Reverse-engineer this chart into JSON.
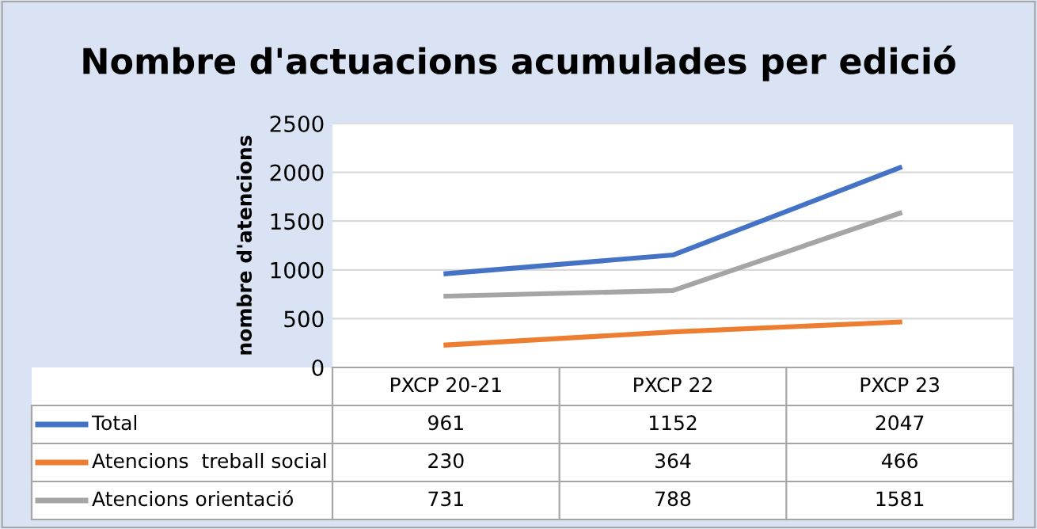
{
  "chart_data": {
    "type": "line",
    "title": "Nombre d'actuacions acumulades per edició",
    "ylabel": "nombre d'atencions",
    "categories": [
      "PXCP 20-21",
      "PXCP 22",
      "PXCP 23"
    ],
    "series": [
      {
        "name": "Total",
        "color": "#4472c4",
        "values": [
          961,
          1152,
          2047
        ]
      },
      {
        "name": "Atencions  treball social",
        "color": "#ed7d31",
        "values": [
          230,
          364,
          466
        ]
      },
      {
        "name": "Atencions orientació",
        "color": "#a5a5a5",
        "values": [
          731,
          788,
          1581
        ]
      }
    ],
    "ylim": [
      0,
      2500
    ],
    "yticks": [
      0,
      500,
      1000,
      1500,
      2000,
      2500
    ],
    "grid": "y",
    "legend": "bottom",
    "data_labels": true,
    "marker": "none",
    "line_style": "solid"
  }
}
